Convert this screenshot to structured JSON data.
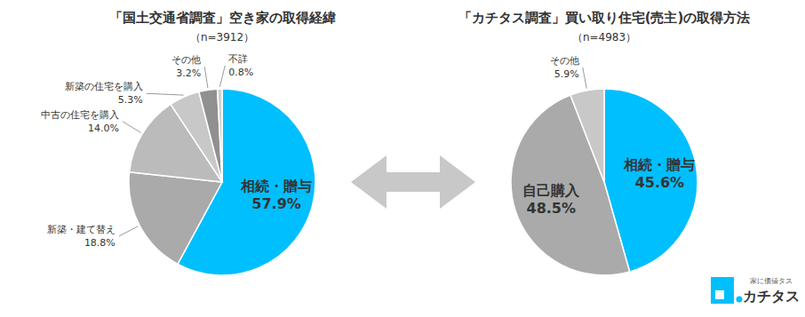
{
  "chart_data": [
    {
      "type": "pie",
      "title": "「国土交通省調査」空き家の取得経緯",
      "subtitle": "（n=3912）",
      "categories": [
        "相続・贈与",
        "新築・建て替え",
        "中古の住宅を購入",
        "新築の住宅を購入",
        "その他",
        "不詳"
      ],
      "values": [
        57.9,
        18.8,
        14.0,
        5.3,
        3.2,
        0.8
      ],
      "value_labels": [
        "57.9%",
        "18.8%",
        "14.0%",
        "5.3%",
        "3.2%",
        "0.8%"
      ],
      "colors": [
        "#00BFFF",
        "#AAAAAA",
        "#BBBBBB",
        "#C8C8C8",
        "#909090",
        "#D0D0D0"
      ],
      "data_labels": true
    },
    {
      "type": "pie",
      "title": "「カチタス調査」買い取り住宅(売主)の取得方法",
      "subtitle": "（n=4983）",
      "categories": [
        "相続・贈与",
        "自己購入",
        "その他"
      ],
      "values": [
        45.6,
        48.5,
        5.9
      ],
      "value_labels": [
        "45.6%",
        "48.5%",
        "5.9%"
      ],
      "colors": [
        "#00BFFF",
        "#AAAAAA",
        "#C8C8C8"
      ],
      "data_labels": true,
      "annotations": [
        "家に価値タス",
        "カチタス"
      ]
    }
  ]
}
